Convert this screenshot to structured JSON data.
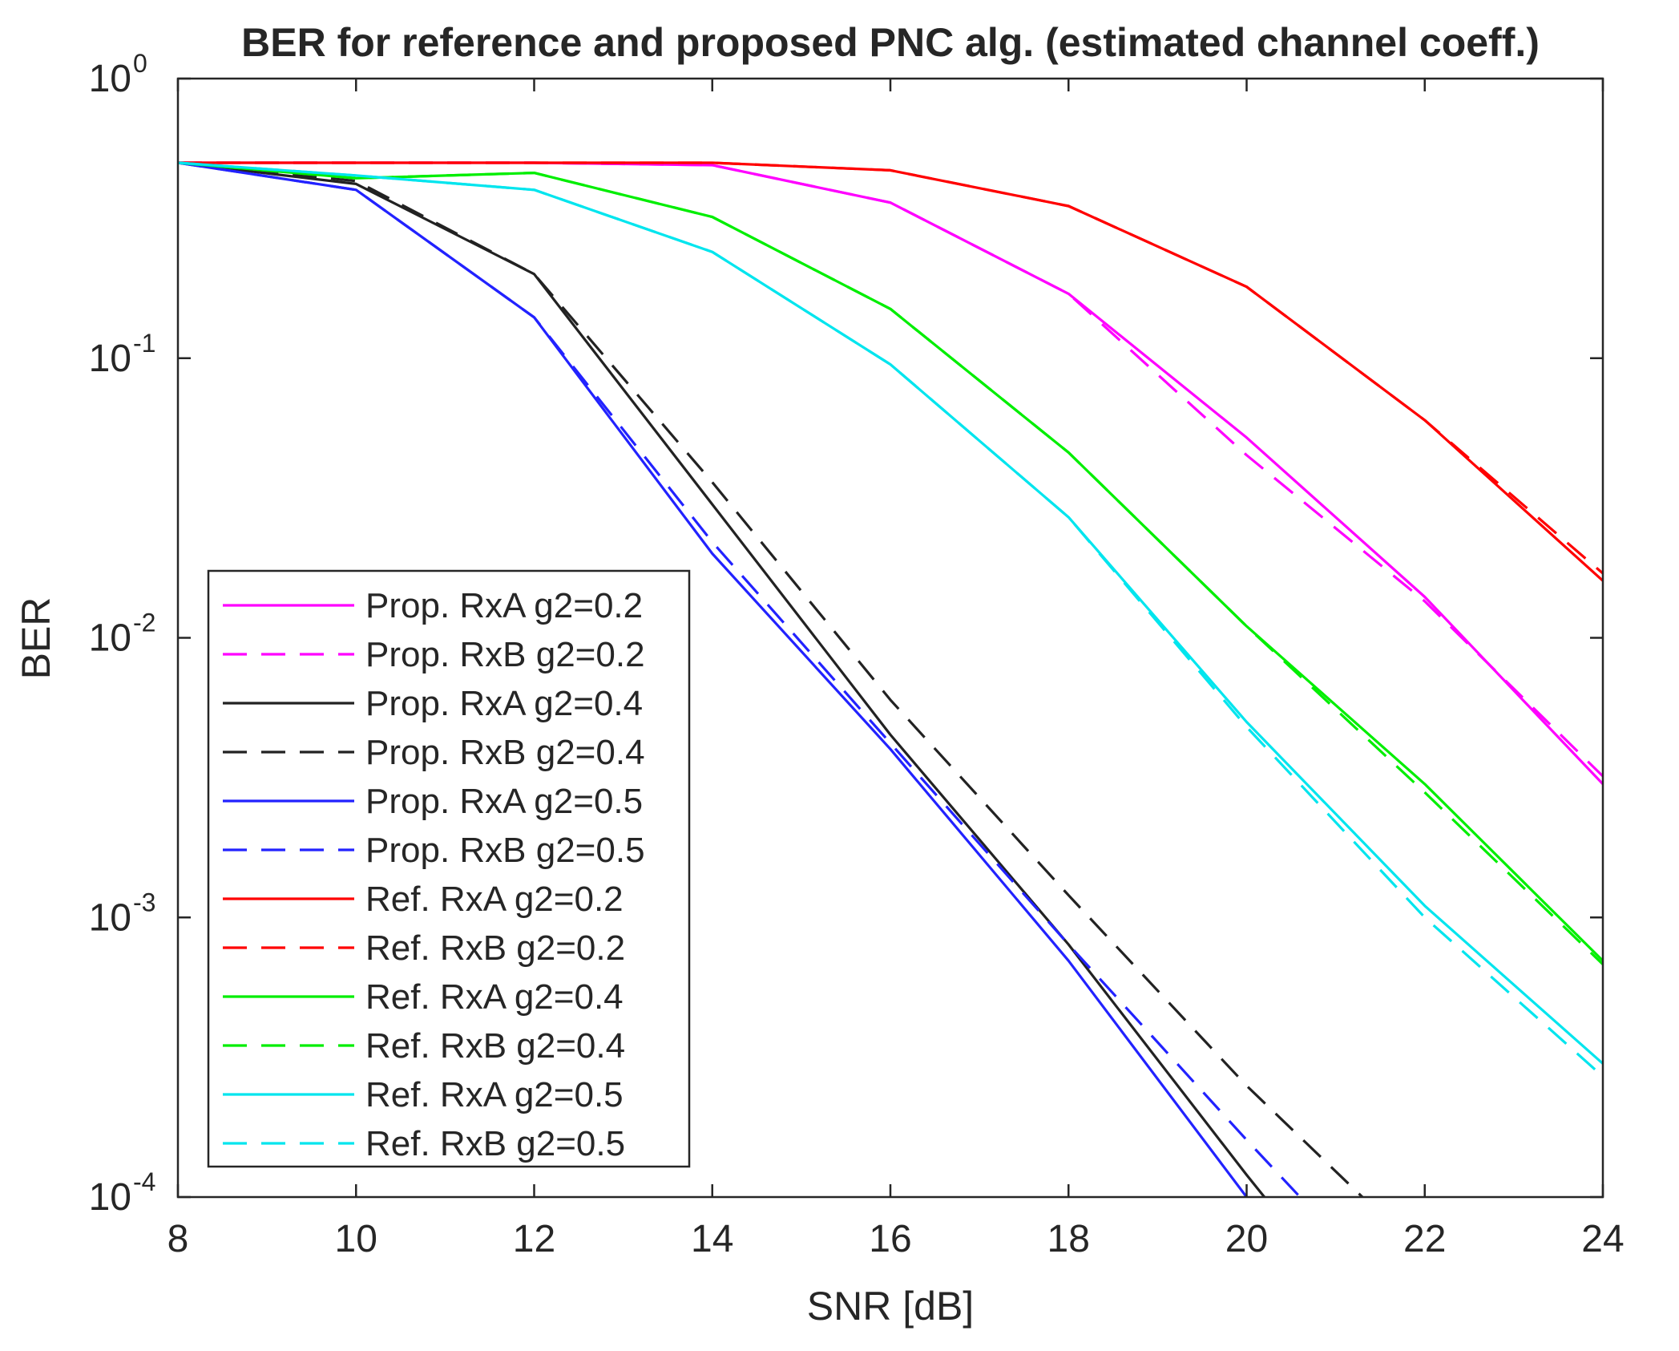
{
  "chart_data": {
    "type": "line",
    "title": "BER for reference and proposed PNC alg. (estimated channel coeff.)",
    "xlabel": "SNR [dB]",
    "ylabel": "BER",
    "xscale": "linear",
    "yscale": "log",
    "xlim": [
      8,
      24
    ],
    "ylim": [
      0.0001,
      1
    ],
    "xticks": [
      8,
      10,
      12,
      14,
      16,
      18,
      20,
      22,
      24
    ],
    "xtick_labels": [
      "8",
      "10",
      "12",
      "14",
      "16",
      "18",
      "20",
      "22",
      "24"
    ],
    "yticks": [
      {
        "value": 1,
        "base": "10",
        "exp": "0"
      },
      {
        "value": 0.1,
        "base": "10",
        "exp": "-1"
      },
      {
        "value": 0.01,
        "base": "10",
        "exp": "-2"
      },
      {
        "value": 0.001,
        "base": "10",
        "exp": "-3"
      },
      {
        "value": 0.0001,
        "base": "10",
        "exp": "-4"
      }
    ],
    "grid": false,
    "legend_position": "bottom-left",
    "series": [
      {
        "name": "Prop. RxA g2=0.2",
        "color": "#ff00ff",
        "style": "solid",
        "x": [
          8,
          10,
          12,
          14,
          16,
          18,
          20,
          22,
          24
        ],
        "y": [
          0.5,
          0.5,
          0.5,
          0.49,
          0.36,
          0.17,
          0.052,
          0.014,
          0.003
        ]
      },
      {
        "name": "Prop. RxB g2=0.2",
        "color": "#ff00ff",
        "style": "dashed",
        "x": [
          8,
          10,
          12,
          14,
          16,
          18,
          20,
          22,
          24
        ],
        "y": [
          0.5,
          0.5,
          0.5,
          0.49,
          0.36,
          0.17,
          0.045,
          0.0135,
          0.0032
        ]
      },
      {
        "name": "Prop. RxA g2=0.4",
        "color": "#222222",
        "style": "solid",
        "x": [
          8,
          10,
          12,
          14,
          16,
          18,
          20,
          20.2
        ],
        "y": [
          0.5,
          0.42,
          0.2,
          0.03,
          0.0045,
          0.0008,
          0.00012,
          0.0001
        ]
      },
      {
        "name": "Prop. RxB g2=0.4",
        "color": "#222222",
        "style": "dashed",
        "x": [
          8,
          10,
          12,
          14,
          16,
          18,
          20,
          21.3
        ],
        "y": [
          0.5,
          0.43,
          0.2,
          0.036,
          0.006,
          0.0012,
          0.00025,
          0.0001
        ]
      },
      {
        "name": "Prop. RxA g2=0.5",
        "color": "#2222ff",
        "style": "solid",
        "x": [
          8,
          10,
          12,
          14,
          16,
          18,
          20
        ],
        "y": [
          0.5,
          0.4,
          0.14,
          0.02,
          0.004,
          0.0007,
          0.0001
        ]
      },
      {
        "name": "Prop. RxB g2=0.5",
        "color": "#2222ff",
        "style": "dashed",
        "x": [
          8,
          10,
          12,
          14,
          16,
          18,
          20,
          20.6
        ],
        "y": [
          0.5,
          0.4,
          0.14,
          0.022,
          0.0042,
          0.0008,
          0.00016,
          0.0001
        ]
      },
      {
        "name": "Ref. RxA g2=0.2",
        "color": "#ff0000",
        "style": "solid",
        "x": [
          8,
          10,
          12,
          14,
          16,
          18,
          20,
          22,
          24
        ],
        "y": [
          0.5,
          0.5,
          0.5,
          0.5,
          0.47,
          0.35,
          0.18,
          0.06,
          0.016
        ]
      },
      {
        "name": "Ref. RxB g2=0.2",
        "color": "#ff0000",
        "style": "dashed",
        "x": [
          8,
          10,
          12,
          14,
          16,
          18,
          20,
          22,
          24
        ],
        "y": [
          0.5,
          0.5,
          0.5,
          0.5,
          0.47,
          0.35,
          0.18,
          0.06,
          0.017
        ]
      },
      {
        "name": "Ref. RxA g2=0.4",
        "color": "#00ee00",
        "style": "solid",
        "x": [
          8,
          10,
          12,
          14,
          16,
          18,
          20,
          22,
          24
        ],
        "y": [
          0.5,
          0.44,
          0.46,
          0.32,
          0.15,
          0.046,
          0.011,
          0.003,
          0.0007
        ]
      },
      {
        "name": "Ref. RxB g2=0.4",
        "color": "#00ee00",
        "style": "dashed",
        "x": [
          8,
          10,
          12,
          14,
          16,
          18,
          20,
          22,
          24
        ],
        "y": [
          0.5,
          0.44,
          0.46,
          0.32,
          0.15,
          0.046,
          0.011,
          0.0028,
          0.00068
        ]
      },
      {
        "name": "Ref. RxA g2=0.5",
        "color": "#00e5ee",
        "style": "solid",
        "x": [
          8,
          10,
          12,
          14,
          16,
          18,
          20,
          22,
          24
        ],
        "y": [
          0.5,
          0.45,
          0.4,
          0.24,
          0.095,
          0.027,
          0.005,
          0.0011,
          0.0003
        ]
      },
      {
        "name": "Ref. RxB g2=0.5",
        "color": "#00e5ee",
        "style": "dashed",
        "x": [
          8,
          10,
          12,
          14,
          16,
          18,
          20,
          22,
          24
        ],
        "y": [
          0.5,
          0.45,
          0.4,
          0.24,
          0.095,
          0.027,
          0.0048,
          0.001,
          0.00027
        ]
      }
    ]
  }
}
